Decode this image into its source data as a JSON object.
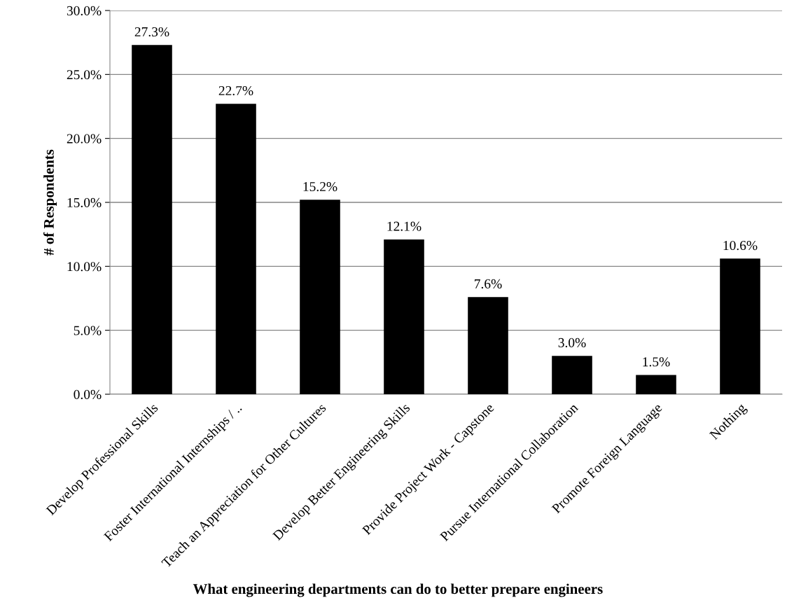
{
  "chart_data": {
    "type": "bar",
    "xlabel": "What engineering departments can do to better prepare engineers",
    "ylabel": "# of Respondents",
    "categories": [
      "Develop Professional Skills",
      "Foster International Internships / ..",
      "Teach an Appreciation for Other Cultures",
      "Develop Better Engineering Skills",
      "Provide Project Work - Capstone",
      "Pursue International Collaboration",
      "Promote Foreign Language",
      "Nothing"
    ],
    "values": [
      27.3,
      22.7,
      15.2,
      12.1,
      7.6,
      3.0,
      1.5,
      10.6
    ],
    "value_labels": [
      "27.3%",
      "22.7%",
      "15.2%",
      "12.1%",
      "7.6%",
      "3.0%",
      "1.5%",
      "10.6%"
    ],
    "color": "#000000",
    "ylim": [
      0,
      30
    ],
    "yticks": [
      {
        "value": 0,
        "label": "0.0%"
      },
      {
        "value": 5,
        "label": "5.0%"
      },
      {
        "value": 10,
        "label": "10.0%"
      },
      {
        "value": 15,
        "label": "15.0%"
      },
      {
        "value": 20,
        "label": "20.0%"
      },
      {
        "value": 25,
        "label": "25.0%"
      },
      {
        "value": 30,
        "label": "30.0%"
      }
    ],
    "grid": "y",
    "legend": false
  }
}
